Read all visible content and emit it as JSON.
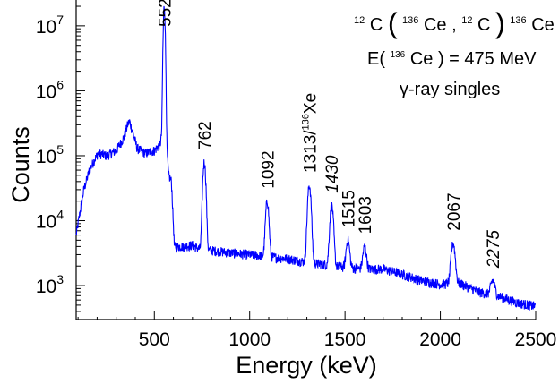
{
  "chart_data": {
    "type": "line",
    "xlabel": "Energy (keV)",
    "ylabel": "Counts",
    "x_range": [
      90,
      2500
    ],
    "y_range": [
      300,
      25000000
    ],
    "y_scale": "log",
    "x_ticks": [
      500,
      1000,
      1500,
      2000,
      2500
    ],
    "x_tick_labels": [
      "500",
      "1000",
      "1500",
      "2000",
      "2500"
    ],
    "y_ticks": [
      {
        "value": 1000,
        "base": "10",
        "exp": "3"
      },
      {
        "value": 10000,
        "base": "10",
        "exp": "4"
      },
      {
        "value": 100000,
        "base": "10",
        "exp": "5"
      },
      {
        "value": 1000000,
        "base": "10",
        "exp": "6"
      },
      {
        "value": 10000000,
        "base": "10",
        "exp": "7"
      }
    ],
    "grid": false,
    "series_color": "#0000ff",
    "highlight_color": "#ff0000",
    "annotation": {
      "reaction": {
        "target": "12",
        "el1": "C",
        "beam": "136",
        "el2": "Ce",
        "ejectile": "12",
        "el3": "C",
        "residual": "136",
        "el4": "Ce",
        "star": "*"
      },
      "energy": {
        "prefix": "E(",
        "mass": "136",
        "el": "Ce",
        "suffix": ") = 475 MeV"
      },
      "mode": "γ-ray singles"
    },
    "peaks": [
      {
        "energy": 552,
        "counts": 20000000,
        "label": "552",
        "highlight": false
      },
      {
        "energy": 762,
        "counts": 80000,
        "label": "762",
        "highlight": false
      },
      {
        "energy": 1092,
        "counts": 20000,
        "label": "1092",
        "highlight": false
      },
      {
        "energy": 1313,
        "counts": 35000,
        "label": "1313/",
        "label_sup": "136",
        "label_el": "Xe",
        "highlight": false
      },
      {
        "energy": 1430,
        "counts": 17000,
        "label": "1430",
        "highlight": true
      },
      {
        "energy": 1515,
        "counts": 5000,
        "label": "1515",
        "highlight": false
      },
      {
        "energy": 1603,
        "counts": 4000,
        "label": "1603",
        "highlight": false
      },
      {
        "energy": 2067,
        "counts": 4500,
        "label": "2067",
        "highlight": false
      },
      {
        "energy": 2275,
        "counts": 1200,
        "label": "2275",
        "highlight": true
      }
    ],
    "continuum": [
      [
        90,
        6000
      ],
      [
        130,
        30000
      ],
      [
        160,
        60000
      ],
      [
        180,
        80000
      ],
      [
        205,
        110000
      ],
      [
        250,
        100000
      ],
      [
        300,
        120000
      ],
      [
        340,
        190000
      ],
      [
        360,
        300000
      ],
      [
        370,
        340000
      ],
      [
        385,
        240000
      ],
      [
        410,
        130000
      ],
      [
        450,
        110000
      ],
      [
        500,
        120000
      ],
      [
        530,
        150000
      ],
      [
        545,
        250000
      ],
      [
        560,
        200000
      ],
      [
        575,
        50000
      ],
      [
        590,
        40000
      ],
      [
        605,
        4000
      ],
      [
        650,
        4000
      ],
      [
        700,
        4200
      ],
      [
        750,
        3500
      ],
      [
        800,
        3500
      ],
      [
        900,
        3200
      ],
      [
        1000,
        3000
      ],
      [
        1100,
        2800
      ],
      [
        1200,
        2600
      ],
      [
        1300,
        2300
      ],
      [
        1400,
        2100
      ],
      [
        1500,
        1900
      ],
      [
        1600,
        1800
      ],
      [
        1700,
        1800
      ],
      [
        1800,
        1500
      ],
      [
        1900,
        1200
      ],
      [
        2000,
        1050
      ],
      [
        2100,
        1100
      ],
      [
        2200,
        800
      ],
      [
        2300,
        700
      ],
      [
        2400,
        550
      ],
      [
        2500,
        480
      ]
    ]
  }
}
